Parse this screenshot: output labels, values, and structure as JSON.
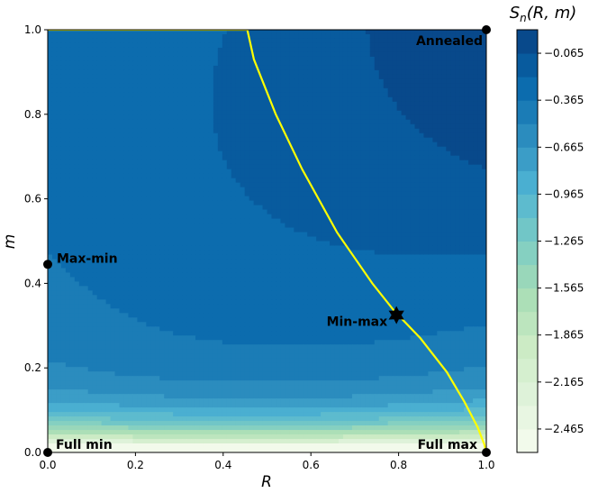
{
  "chart_data": {
    "type": "heatmap",
    "subtype": "filled-contour",
    "xlabel": "R",
    "ylabel": "m",
    "colorbar_label": "S_n(R, m)",
    "xlim": [
      0.0,
      1.0
    ],
    "ylim": [
      0.0,
      1.0
    ],
    "x_ticks": [
      "0.0",
      "0.2",
      "0.4",
      "0.6",
      "0.8",
      "1.0"
    ],
    "y_ticks": [
      "0.0",
      "0.2",
      "0.4",
      "0.6",
      "0.8",
      "1.0"
    ],
    "colorbar_range": [
      -2.615,
      0.085
    ],
    "colorbar_levels": 18,
    "colorbar_ticks": [
      "-0.065",
      "-0.365",
      "-0.665",
      "-0.965",
      "-1.265",
      "-1.565",
      "-1.865",
      "-2.165",
      "-2.465"
    ],
    "colormap": [
      "#f7fcf0",
      "#e0f3db",
      "#ccebc5",
      "#a8ddb5",
      "#7bccc4",
      "#4eb3d3",
      "#2b8cbe",
      "#0868ac",
      "#084081"
    ],
    "grid": false,
    "critical_curve": {
      "color": "#ffff00",
      "x": [
        0.0,
        0.455,
        0.47,
        0.52,
        0.58,
        0.66,
        0.74,
        0.79,
        0.85,
        0.91,
        0.95,
        0.98,
        0.995,
        1.0
      ],
      "y": [
        1.0,
        1.0,
        0.93,
        0.8,
        0.67,
        0.52,
        0.4,
        0.335,
        0.27,
        0.19,
        0.12,
        0.06,
        0.02,
        0.0
      ]
    },
    "points": [
      {
        "label": "Annealed",
        "x": 1.0,
        "y": 1.0,
        "marker": "circle"
      },
      {
        "label": "Max-min",
        "x": 0.0,
        "y": 0.445,
        "marker": "circle"
      },
      {
        "label": "Min-max",
        "x": 0.795,
        "y": 0.325,
        "marker": "star"
      },
      {
        "label": "Full min",
        "x": 0.0,
        "y": 0.0,
        "marker": "circle"
      },
      {
        "label": "Full max",
        "x": 1.0,
        "y": 0.0,
        "marker": "circle"
      }
    ]
  }
}
